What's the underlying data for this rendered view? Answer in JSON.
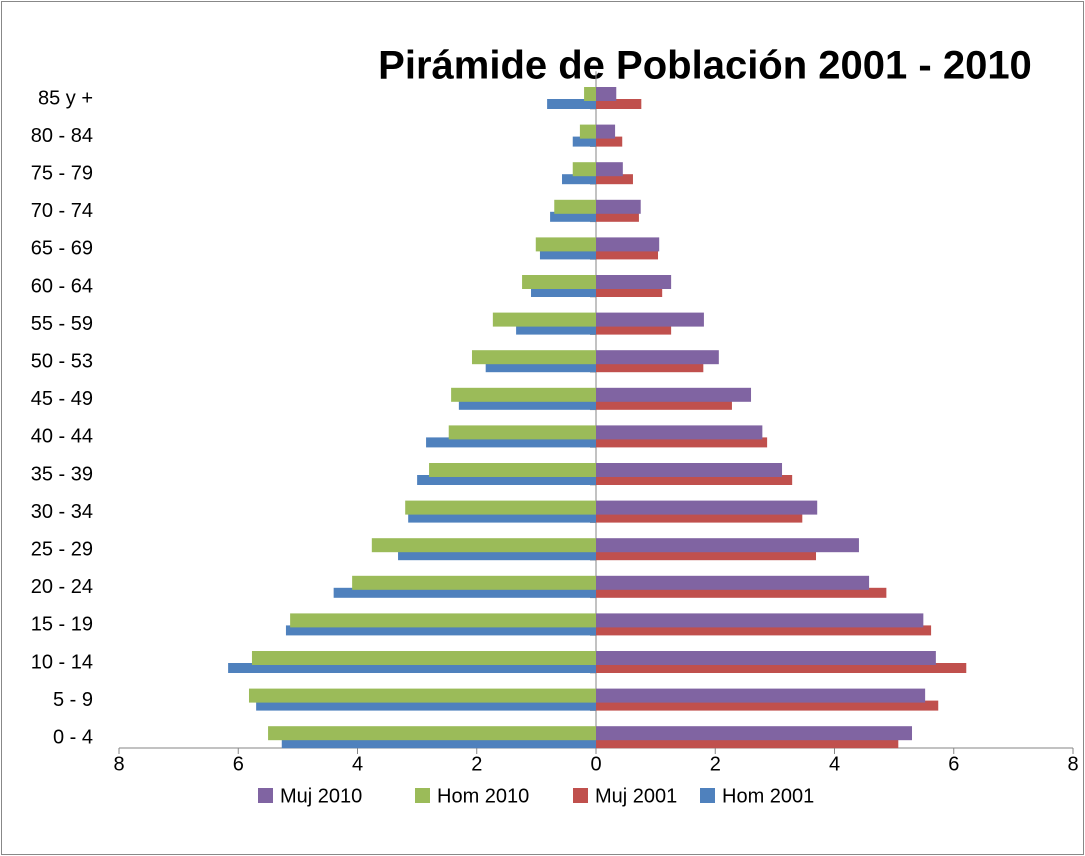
{
  "chart_data": {
    "type": "bar",
    "orientation": "horizontal",
    "title": "Pirámide de Población 2001 - 2010",
    "categories": [
      "0 - 4",
      "5 - 9",
      "10 - 14",
      "15 - 19",
      "20 - 24",
      "25 - 29",
      "30 - 34",
      "35 - 39",
      "40 - 44",
      "45 - 49",
      "50 - 53",
      "55 - 59",
      "60 - 64",
      "65 - 69",
      "70 - 74",
      "75 - 79",
      "80 - 84",
      "85 y  +"
    ],
    "series": [
      {
        "name": "Muj 2010",
        "color": "#8064a2",
        "values": [
          5.3,
          5.52,
          5.7,
          5.49,
          4.58,
          4.41,
          3.71,
          3.12,
          2.79,
          2.6,
          2.06,
          1.81,
          1.26,
          1.06,
          0.75,
          0.45,
          0.32,
          0.34
        ]
      },
      {
        "name": "Hom 2010",
        "color": "#9bbb59",
        "values": [
          -5.5,
          -5.82,
          -5.77,
          -5.13,
          -4.09,
          -3.76,
          -3.2,
          -2.8,
          -2.47,
          -2.43,
          -2.08,
          -1.73,
          -1.24,
          -1.01,
          -0.7,
          -0.39,
          -0.27,
          -0.2
        ]
      },
      {
        "name": "Muj 2001",
        "color": "#c0504d",
        "values": [
          5.07,
          5.74,
          6.21,
          5.62,
          4.87,
          3.69,
          3.46,
          3.29,
          2.87,
          2.28,
          1.8,
          1.26,
          1.11,
          1.04,
          0.72,
          0.62,
          0.44,
          0.76
        ]
      },
      {
        "name": "Hom 2001",
        "color": "#4f81bd",
        "values": [
          -5.27,
          -5.7,
          -6.17,
          -5.2,
          -4.4,
          -3.32,
          -3.15,
          -3.0,
          -2.85,
          -2.3,
          -1.85,
          -1.34,
          -1.09,
          -0.94,
          -0.77,
          -0.57,
          -0.39,
          -0.82
        ]
      }
    ],
    "xlim": [
      -8,
      8
    ],
    "xticks": [
      {
        "value": -8,
        "label": "8"
      },
      {
        "value": -6,
        "label": "6"
      },
      {
        "value": -4,
        "label": "4"
      },
      {
        "value": -2,
        "label": "2"
      },
      0,
      2,
      4,
      6,
      8
    ],
    "legend": "bottom",
    "grid": false
  }
}
